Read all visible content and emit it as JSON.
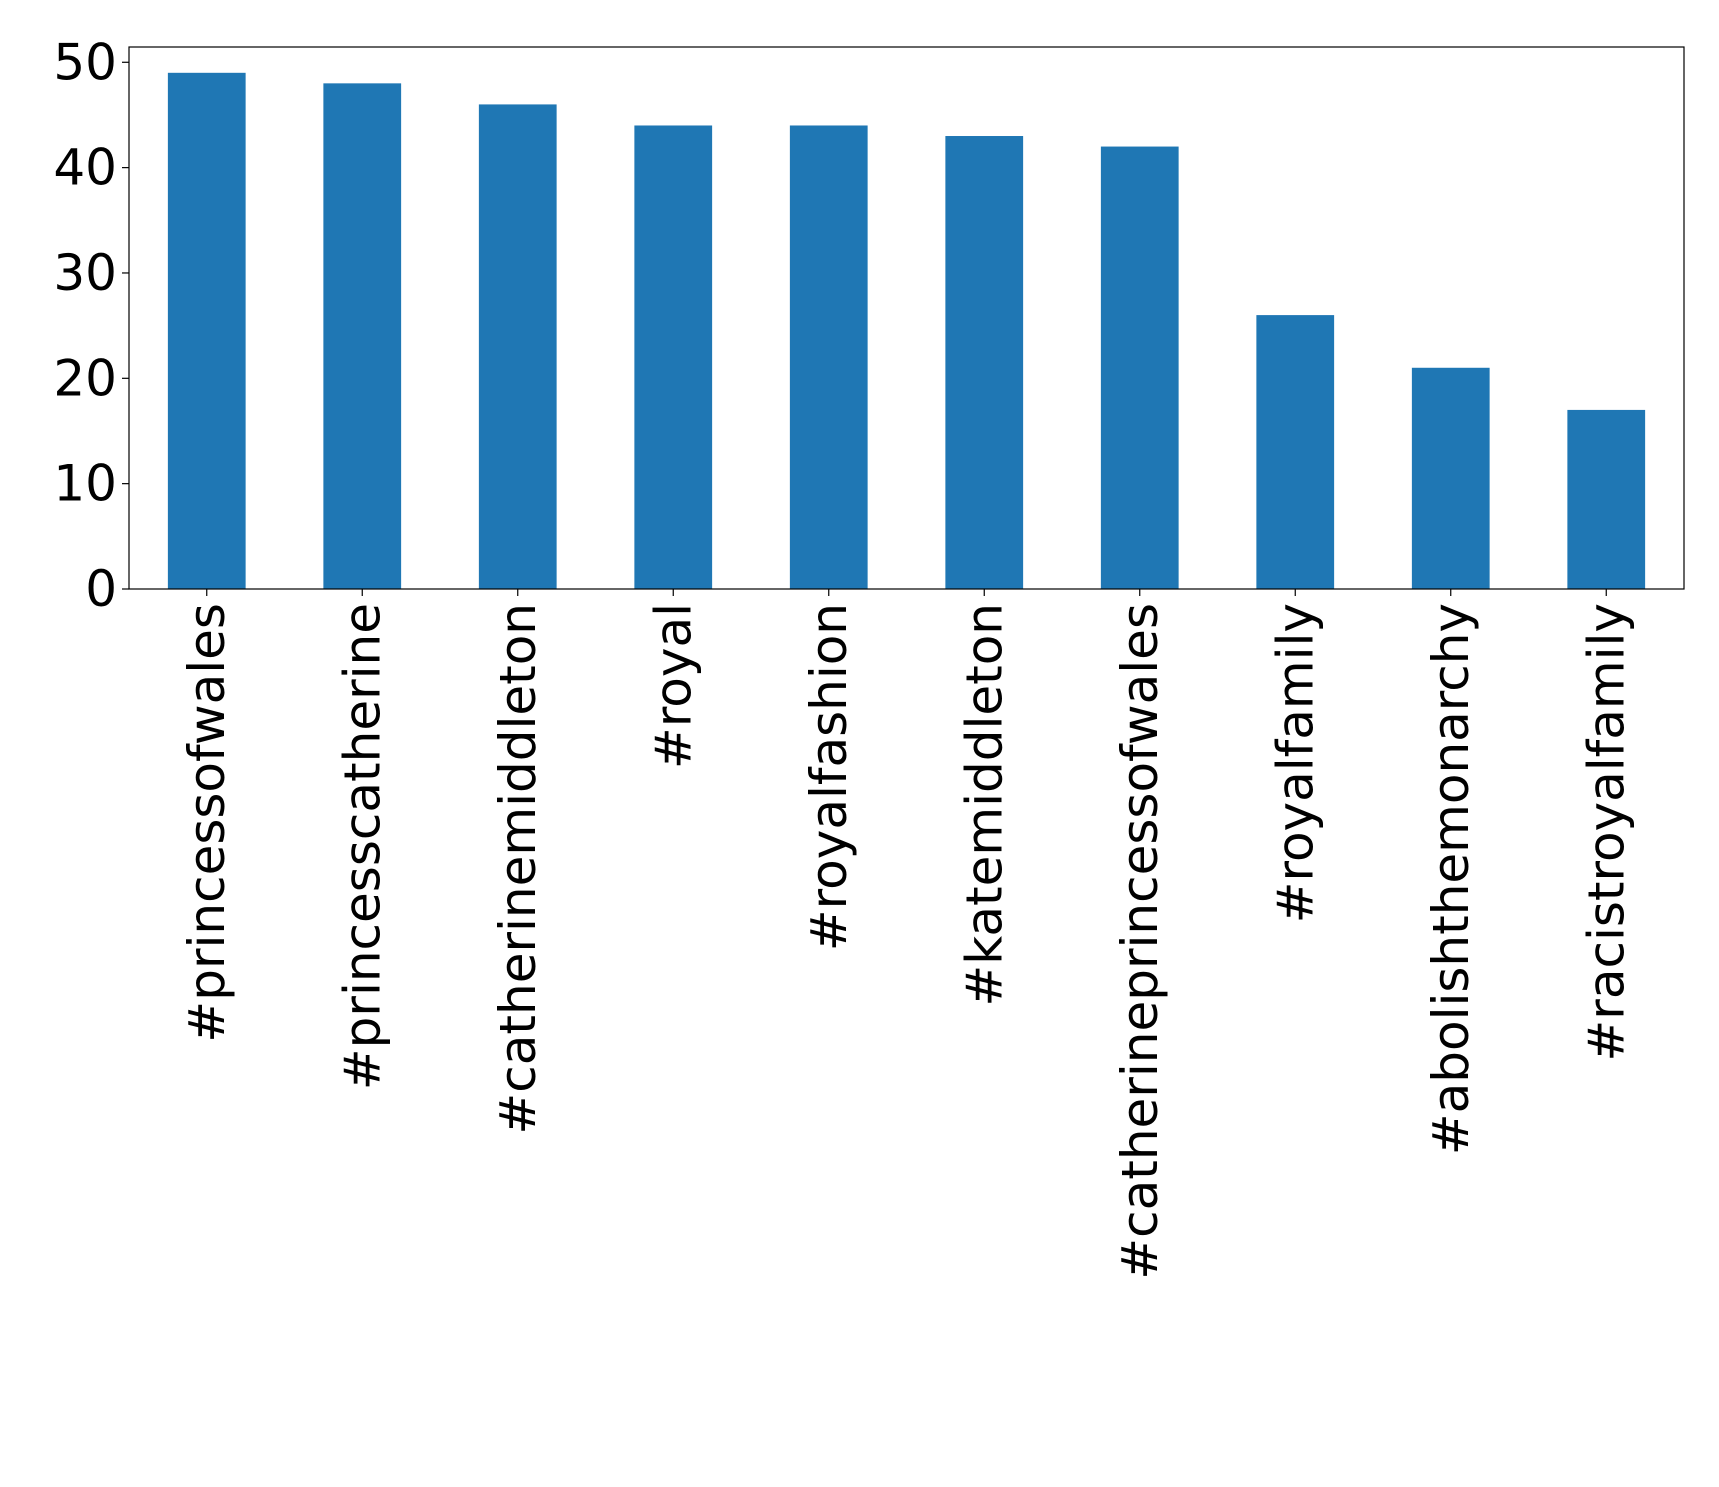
{
  "chart_data": {
    "type": "bar",
    "title": "",
    "xlabel": "",
    "ylabel": "",
    "categories": [
      "#princessofwales",
      "#princesscatherine",
      "#catherinemiddleton",
      "#royal",
      "#royalfashion",
      "#katemiddleton",
      "#catherineprincessofwales",
      "#royalfamily",
      "#abolishthemonarchy",
      "#racistroyalfamily"
    ],
    "values": [
      49,
      48,
      46,
      44,
      44,
      43,
      42,
      26,
      21,
      17
    ],
    "ylim": [
      0,
      51.45
    ],
    "yticks": [
      0,
      10,
      20,
      30,
      40,
      50
    ],
    "grid": false,
    "legend": "none",
    "bar_color": "#1f77b4",
    "x_tick_rotation": "vertical"
  }
}
